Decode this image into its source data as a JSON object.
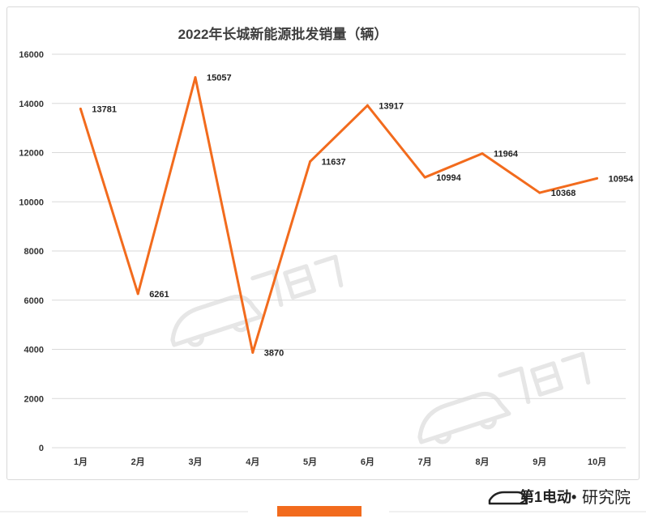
{
  "chart_data": {
    "type": "line",
    "title": "2022年长城新能源批发销量（辆）",
    "categories": [
      "1月",
      "2月",
      "3月",
      "4月",
      "5月",
      "6月",
      "7月",
      "8月",
      "9月",
      "10月"
    ],
    "series": [
      {
        "values": [
          13781,
          6261,
          15057,
          3870,
          11637,
          13917,
          10994,
          11964,
          10368,
          10954
        ]
      }
    ],
    "ylim": [
      0,
      16000
    ],
    "yticks": [
      0,
      2000,
      4000,
      6000,
      8000,
      10000,
      12000,
      14000,
      16000
    ],
    "grid": true,
    "legend": "none",
    "colors": {
      "series": "#f26b1d",
      "grid": "#d9d9d9"
    }
  },
  "brand": {
    "logo_text": "第1电动",
    "dot": "•",
    "suffix": "研究院"
  }
}
